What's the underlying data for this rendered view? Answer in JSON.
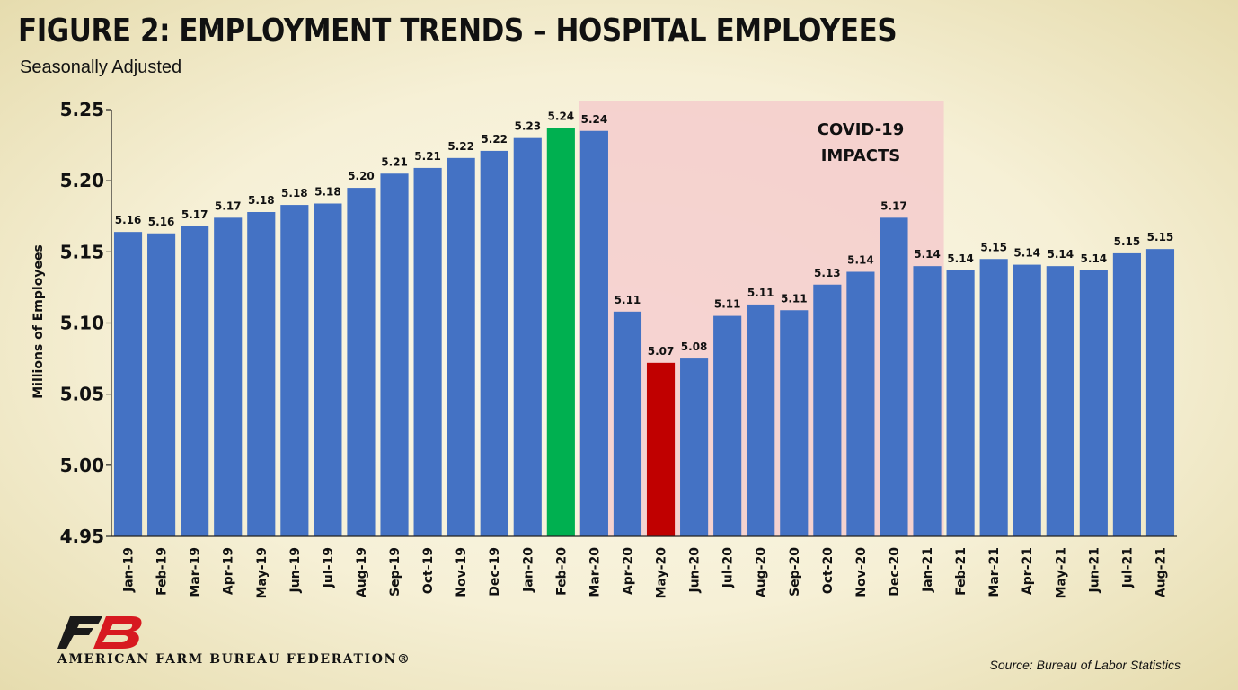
{
  "title": "FIGURE 2: EMPLOYMENT TRENDS – HOSPITAL EMPLOYEES",
  "subtitle": "Seasonally Adjusted",
  "source": "Source: Bureau of Labor Statistics",
  "organization": "AMERICAN FARM BUREAU FEDERATION®",
  "logo_text": "FB",
  "colors": {
    "bar": "#4472c4",
    "peak": "#00b050",
    "trough": "#c00000",
    "shade": "#f4cccc"
  },
  "chart_data": {
    "type": "bar",
    "ylabel": "Millions of Employees",
    "xlabel": "",
    "ylim": [
      4.95,
      5.25
    ],
    "yticks": [
      "5.25",
      "5.20",
      "5.15",
      "5.10",
      "5.05",
      "5.00",
      "4.95"
    ],
    "grid": false,
    "categories": [
      "Jan-19",
      "Feb-19",
      "Mar-19",
      "Apr-19",
      "May-19",
      "Jun-19",
      "Jul-19",
      "Aug-19",
      "Sep-19",
      "Oct-19",
      "Nov-19",
      "Dec-19",
      "Jan-20",
      "Feb-20",
      "Mar-20",
      "Apr-20",
      "May-20",
      "Jun-20",
      "Jul-20",
      "Aug-20",
      "Sep-20",
      "Oct-20",
      "Nov-20",
      "Dec-20",
      "Jan-21",
      "Feb-21",
      "Mar-21",
      "Apr-21",
      "May-21",
      "Jun-21",
      "Jul-21",
      "Aug-21"
    ],
    "values": [
      5.164,
      5.163,
      5.168,
      5.174,
      5.178,
      5.183,
      5.184,
      5.195,
      5.205,
      5.209,
      5.216,
      5.221,
      5.23,
      5.237,
      5.235,
      5.108,
      5.072,
      5.075,
      5.105,
      5.113,
      5.109,
      5.127,
      5.136,
      5.174,
      5.14,
      5.137,
      5.145,
      5.141,
      5.14,
      5.137,
      5.149,
      5.152
    ],
    "labels": [
      "5.16",
      "5.16",
      "5.17",
      "5.17",
      "5.18",
      "5.18",
      "5.18",
      "5.20",
      "5.21",
      "5.21",
      "5.22",
      "5.22",
      "5.23",
      "5.24",
      "5.24",
      "5.11",
      "5.07",
      "5.08",
      "5.11",
      "5.11",
      "5.11",
      "5.13",
      "5.14",
      "5.17",
      "5.14",
      "5.14",
      "5.15",
      "5.14",
      "5.14",
      "5.14",
      "5.15",
      "5.15"
    ],
    "highlight": {
      "Feb-20": "peak",
      "May-20": "trough"
    },
    "annotation": {
      "lines": [
        "COVID-19",
        "IMPACTS"
      ],
      "span": [
        "Mar-20",
        "Jan-21"
      ]
    }
  }
}
